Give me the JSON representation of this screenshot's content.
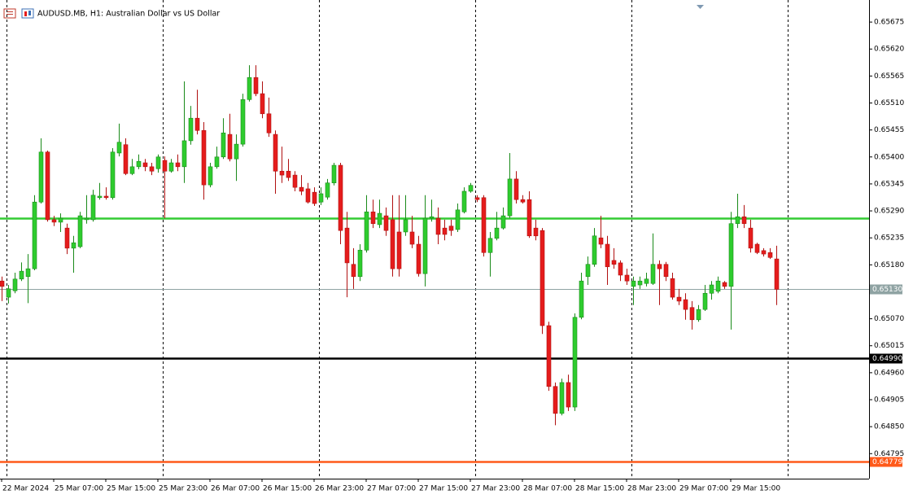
{
  "chart_data": {
    "type": "candlestick",
    "title": "AUDUSD.MB, H1:  Australian Dollar vs US Dollar",
    "categories": [
      "22 Mar 2024",
      null,
      null,
      null,
      null,
      null,
      null,
      null,
      "25 Mar 07:00",
      null,
      null,
      null,
      null,
      null,
      null,
      null,
      "25 Mar 15:00",
      null,
      null,
      null,
      null,
      null,
      null,
      null,
      "25 Mar 23:00",
      null,
      null,
      null,
      null,
      null,
      null,
      null,
      "26 Mar 07:00",
      null,
      null,
      null,
      null,
      null,
      null,
      null,
      "26 Mar 15:00",
      null,
      null,
      null,
      null,
      null,
      null,
      null,
      "26 Mar 23:00",
      null,
      null,
      null,
      null,
      null,
      null,
      null,
      "27 Mar 07:00",
      null,
      null,
      null,
      null,
      null,
      null,
      null,
      "27 Mar 15:00",
      null,
      null,
      null,
      null,
      null,
      null,
      null,
      "27 Mar 23:00",
      null,
      null,
      null,
      null,
      null,
      null,
      null,
      "28 Mar 07:00",
      null,
      null,
      null,
      null,
      null,
      null,
      null,
      "28 Mar 15:00",
      null,
      null,
      null,
      null,
      null,
      null,
      null,
      "28 Mar 23:00",
      null,
      null,
      null,
      null,
      null,
      null,
      null,
      "29 Mar 07:00",
      null,
      null,
      null,
      null,
      null,
      null,
      null,
      "29 Mar 15:00",
      null,
      null,
      null,
      null,
      null,
      null,
      null
    ],
    "open": [
      0.65147,
      0.65114,
      0.65127,
      0.65151,
      0.65156,
      0.65172,
      0.65308,
      0.6541,
      0.65272,
      0.65267,
      0.65255,
      0.65214,
      0.65217,
      0.65272,
      0.65272,
      0.65317,
      0.6532,
      0.65317,
      0.65408,
      0.65425,
      0.65366,
      0.6538,
      0.65388,
      0.6538,
      0.65376,
      0.65393,
      0.65371,
      0.65388,
      0.6538,
      0.65433,
      0.65479,
      0.65454,
      0.65343,
      0.6538,
      0.654,
      0.65446,
      0.65396,
      0.65426,
      0.65517,
      0.65562,
      0.65529,
      0.65488,
      0.65446,
      0.65371,
      0.65371,
      0.65363,
      0.65338,
      0.65335,
      0.65328,
      0.65308,
      0.65318,
      0.65347,
      0.65383,
      0.65255,
      0.65181,
      0.65156,
      0.6521,
      0.65288,
      0.65262,
      0.6528,
      0.65272,
      0.65247,
      0.65247,
      0.65247,
      0.65222,
      0.65162,
      0.65275,
      0.65275,
      0.65255,
      0.65259,
      0.65252,
      0.65288,
      0.6533,
      0.65317,
      0.65317,
      0.65205,
      0.65234,
      0.65255,
      0.6528,
      0.65355,
      0.65313,
      0.65313,
      0.65255,
      0.6525,
      0.65056,
      0.64932,
      0.64877,
      0.6494,
      0.6489,
      0.65073,
      0.65156,
      0.65181,
      0.65235,
      0.65222,
      0.65189,
      0.65184,
      0.65159,
      0.65136,
      0.65139,
      0.65142,
      0.65142,
      0.65181,
      0.65181,
      0.65152,
      0.65114,
      0.65109,
      0.65093,
      0.65068,
      0.65089,
      0.65122,
      0.65126,
      0.65144,
      0.65136,
      0.65264,
      0.65278,
      0.65255,
      0.65222,
      0.65209,
      0.65205,
      0.65192
    ],
    "high": [
      0.65156,
      0.65139,
      0.65164,
      0.65185,
      0.65202,
      0.65322,
      0.65438,
      0.65413,
      0.6528,
      0.65285,
      0.65264,
      0.65239,
      0.65288,
      0.65322,
      0.65333,
      0.65347,
      0.65338,
      0.65418,
      0.65468,
      0.65438,
      0.65396,
      0.65405,
      0.65396,
      0.65388,
      0.65405,
      0.65401,
      0.65396,
      0.65405,
      0.65554,
      0.65504,
      0.65537,
      0.65471,
      0.65388,
      0.65421,
      0.65479,
      0.65488,
      0.65446,
      0.65529,
      0.65587,
      0.65587,
      0.65554,
      0.65521,
      0.65454,
      0.65421,
      0.65396,
      0.65371,
      0.65363,
      0.65347,
      0.65338,
      0.65338,
      0.65355,
      0.65388,
      0.65388,
      0.65288,
      0.65214,
      0.65222,
      0.65322,
      0.65313,
      0.65313,
      0.65297,
      0.65322,
      0.65322,
      0.65322,
      0.6528,
      0.65239,
      0.65322,
      0.65313,
      0.65297,
      0.65272,
      0.65272,
      0.65305,
      0.65338,
      0.65347,
      0.65322,
      0.65322,
      0.65247,
      0.65288,
      0.65297,
      0.65408,
      0.65371,
      0.65322,
      0.6533,
      0.65272,
      0.65255,
      0.65064,
      0.6494,
      0.64948,
      0.64956,
      0.65081,
      0.65164,
      0.65197,
      0.65255,
      0.6528,
      0.65239,
      0.65214,
      0.65189,
      0.65172,
      0.65156,
      0.65156,
      0.65164,
      0.65244,
      0.65189,
      0.65186,
      0.65164,
      0.65131,
      0.65122,
      0.65106,
      0.65098,
      0.65139,
      0.65147,
      0.65156,
      0.65147,
      0.65288,
      0.65325,
      0.65302,
      0.65272,
      0.65225,
      0.65214,
      0.65214,
      0.65219
    ],
    "low": [
      0.65106,
      0.65101,
      0.65122,
      0.65147,
      0.65102,
      0.65169,
      0.65305,
      0.65268,
      0.65259,
      0.65247,
      0.65202,
      0.65164,
      0.65214,
      0.65264,
      0.65268,
      0.65313,
      0.65313,
      0.65313,
      0.65401,
      0.65363,
      0.65363,
      0.65375,
      0.65371,
      0.65363,
      0.65368,
      0.65275,
      0.65368,
      0.65371,
      0.65347,
      0.65425,
      0.65446,
      0.65313,
      0.65338,
      0.65376,
      0.65396,
      0.65391,
      0.65351,
      0.65421,
      0.65513,
      0.65524,
      0.65479,
      0.65441,
      0.65325,
      0.65347,
      0.65351,
      0.6533,
      0.65322,
      0.65305,
      0.653,
      0.65302,
      0.65313,
      0.65342,
      0.65222,
      0.65114,
      0.65131,
      0.65147,
      0.65205,
      0.65255,
      0.65255,
      0.65239,
      0.65156,
      0.65156,
      0.65239,
      0.65214,
      0.65156,
      0.65136,
      0.65268,
      0.65222,
      0.6523,
      0.65239,
      0.65247,
      0.65285,
      0.65327,
      0.65308,
      0.65197,
      0.65156,
      0.6523,
      0.65252,
      0.65275,
      0.65305,
      0.65305,
      0.65235,
      0.6523,
      0.65039,
      0.64923,
      0.64853,
      0.64873,
      0.64882,
      0.64882,
      0.65069,
      0.65139,
      0.65176,
      0.65214,
      0.65139,
      0.65172,
      0.65147,
      0.65139,
      0.65098,
      0.65131,
      0.65136,
      0.65139,
      0.65098,
      0.65147,
      0.65109,
      0.65098,
      0.65068,
      0.65048,
      0.65064,
      0.65086,
      0.65109,
      0.65122,
      0.65131,
      0.65048,
      0.65255,
      0.65255,
      0.65205,
      0.65202,
      0.65197,
      0.65192,
      0.65098
    ],
    "close": [
      0.65136,
      0.65131,
      0.65151,
      0.65167,
      0.65172,
      0.65308,
      0.6541,
      0.65272,
      0.65267,
      0.65275,
      0.65214,
      0.65225,
      0.6528,
      0.65275,
      0.65322,
      0.6532,
      0.65317,
      0.6541,
      0.6543,
      0.65366,
      0.6538,
      0.65391,
      0.6538,
      0.65371,
      0.654,
      0.65371,
      0.65388,
      0.6538,
      0.65433,
      0.65479,
      0.65454,
      0.65343,
      0.6538,
      0.654,
      0.65449,
      0.65396,
      0.65426,
      0.65517,
      0.65562,
      0.65529,
      0.65488,
      0.65449,
      0.65371,
      0.65363,
      0.65358,
      0.65338,
      0.6533,
      0.65308,
      0.65305,
      0.65325,
      0.65347,
      0.65383,
      0.6525,
      0.65184,
      0.65156,
      0.6521,
      0.65288,
      0.65264,
      0.65285,
      0.6525,
      0.65172,
      0.65172,
      0.65272,
      0.65222,
      0.65162,
      0.65275,
      0.65278,
      0.65242,
      0.65242,
      0.6525,
      0.65292,
      0.6533,
      0.65342,
      0.65313,
      0.65205,
      0.65234,
      0.65255,
      0.6528,
      0.65355,
      0.65313,
      0.65308,
      0.65239,
      0.65239,
      0.65056,
      0.64932,
      0.64877,
      0.6494,
      0.6489,
      0.65073,
      0.65147,
      0.65181,
      0.65239,
      0.65222,
      0.65176,
      0.65181,
      0.65159,
      0.65147,
      0.65147,
      0.65147,
      0.65151,
      0.65181,
      0.65172,
      0.65156,
      0.65114,
      0.65106,
      0.65089,
      0.65068,
      0.65089,
      0.65122,
      0.65139,
      0.65147,
      0.65136,
      0.65264,
      0.65278,
      0.65264,
      0.65214,
      0.65205,
      0.65202,
      0.65195,
      0.6513
    ],
    "up_color": "#2ecc2e",
    "down_color": "#e51c1c",
    "ylim": [
      0.64744,
      0.6572
    ],
    "yticks": [
      0.65675,
      {
        "value": 0.6562,
        "label": "0.65620"
      },
      0.65565,
      {
        "value": 0.6551,
        "label": "0.65510"
      },
      0.65455,
      {
        "value": 0.654,
        "label": "0.65400"
      },
      0.65345,
      {
        "value": 0.6529,
        "label": "0.65290"
      },
      0.65235,
      {
        "value": 0.6518,
        "label": "0.65180"
      },
      {
        "value": 0.6507,
        "label": "0.65070"
      },
      0.65015,
      {
        "value": 0.6496,
        "label": "0.64960"
      },
      0.64905,
      {
        "value": 0.6485,
        "label": "0.64850"
      },
      0.64795
    ],
    "levels": [
      {
        "value": 0.65275,
        "color": "#33cc33"
      },
      {
        "value": 0.6513,
        "label": "0.65130",
        "color": "#8fa3a3"
      },
      {
        "value": 0.6499,
        "label": "0.64990",
        "color": "#000000"
      },
      {
        "value": 0.64779,
        "label": "0.64779",
        "color": "#ff5a1a"
      }
    ]
  }
}
